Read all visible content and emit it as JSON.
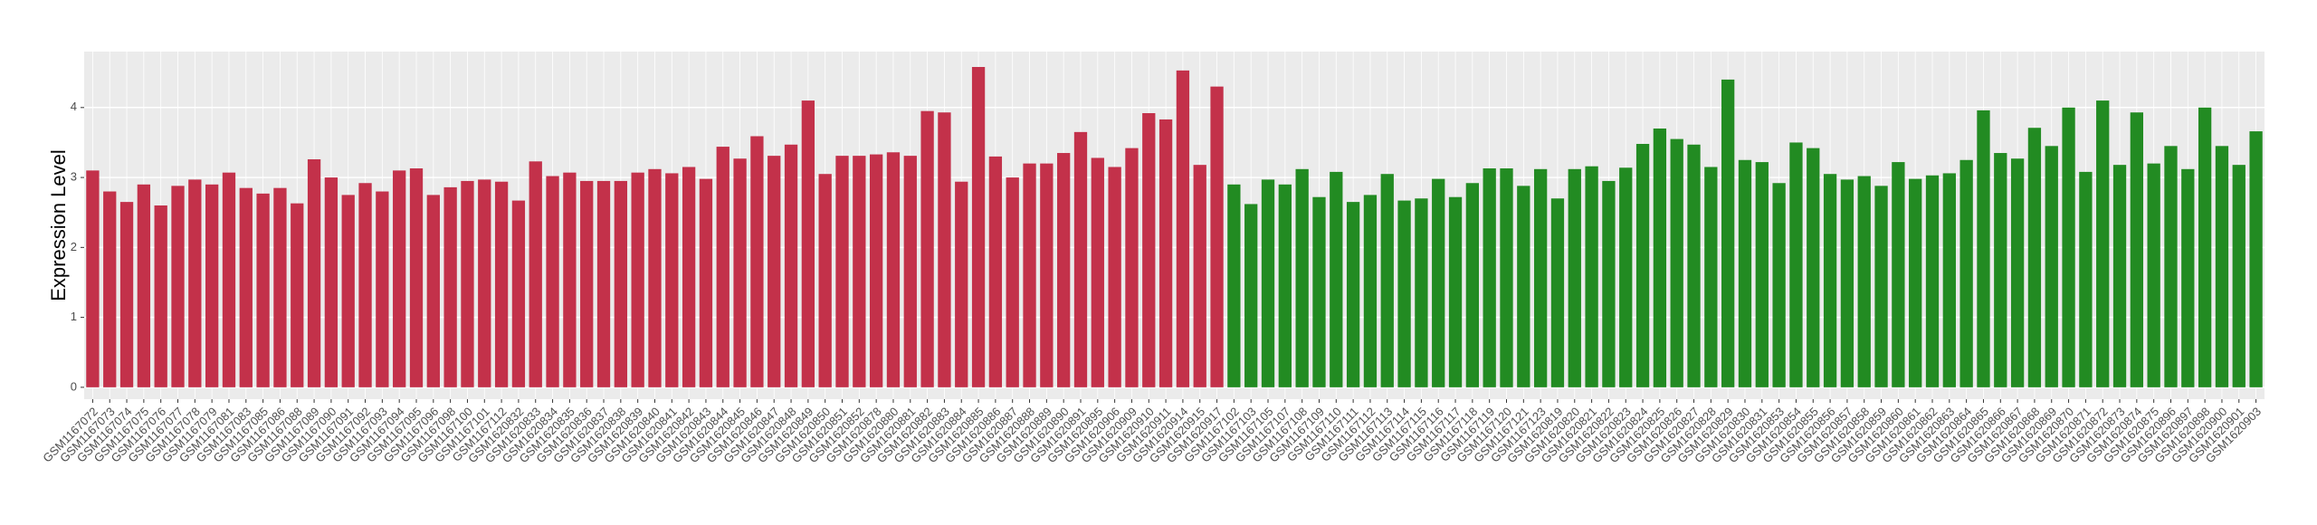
{
  "chart_data": {
    "type": "bar",
    "y_label": "Expression Level",
    "categories": [
      "GSM1167072",
      "GSM1167073",
      "GSM1167074",
      "GSM1167075",
      "GSM1167076",
      "GSM1167077",
      "GSM1167078",
      "GSM1167079",
      "GSM1167081",
      "GSM1167083",
      "GSM1167085",
      "GSM1167086",
      "GSM1167088",
      "GSM1167089",
      "GSM1167090",
      "GSM1167091",
      "GSM1167092",
      "GSM1167093",
      "GSM1167094",
      "GSM1167095",
      "GSM1167096",
      "GSM1167098",
      "GSM1167100",
      "GSM1167101",
      "GSM1167112",
      "GSM1620832",
      "GSM1620833",
      "GSM1620834",
      "GSM1620835",
      "GSM1620836",
      "GSM1620837",
      "GSM1620838",
      "GSM1620839",
      "GSM1620840",
      "GSM1620841",
      "GSM1620842",
      "GSM1620843",
      "GSM1620844",
      "GSM1620845",
      "GSM1620846",
      "GSM1620847",
      "GSM1620848",
      "GSM1620849",
      "GSM1620850",
      "GSM1620851",
      "GSM1620852",
      "GSM1620878",
      "GSM1620880",
      "GSM1620881",
      "GSM1620882",
      "GSM1620883",
      "GSM1620884",
      "GSM1620885",
      "GSM1620886",
      "GSM1620887",
      "GSM1620888",
      "GSM1620889",
      "GSM1620890",
      "GSM1620891",
      "GSM1620895",
      "GSM1620906",
      "GSM1620909",
      "GSM1620910",
      "GSM1620911",
      "GSM1620914",
      "GSM1620915",
      "GSM1620917",
      "GSM1167102",
      "GSM1167103",
      "GSM1167105",
      "GSM1167107",
      "GSM1167108",
      "GSM1167109",
      "GSM1167110",
      "GSM1167111",
      "GSM1167112",
      "GSM1167113",
      "GSM1167114",
      "GSM1167115",
      "GSM1167116",
      "GSM1167117",
      "GSM1167118",
      "GSM1167119",
      "GSM1167120",
      "GSM1167121",
      "GSM1167123",
      "GSM1620819",
      "GSM1620820",
      "GSM1620821",
      "GSM1620822",
      "GSM1620823",
      "GSM1620824",
      "GSM1620825",
      "GSM1620826",
      "GSM1620827",
      "GSM1620828",
      "GSM1620829",
      "GSM1620830",
      "GSM1620831",
      "GSM1620853",
      "GSM1620854",
      "GSM1620855",
      "GSM1620856",
      "GSM1620857",
      "GSM1620858",
      "GSM1620859",
      "GSM1620860",
      "GSM1620861",
      "GSM1620862",
      "GSM1620863",
      "GSM1620864",
      "GSM1620865",
      "GSM1620866",
      "GSM1620867",
      "GSM1620868",
      "GSM1620869",
      "GSM1620870",
      "GSM1620871",
      "GSM1620872",
      "GSM1620873",
      "GSM1620874",
      "GSM1620875",
      "GSM1620896",
      "GSM1620897",
      "GSM1620898",
      "GSM1620900",
      "GSM1620901",
      "GSM1620903"
    ],
    "values": [
      3.1,
      2.8,
      2.65,
      2.9,
      2.6,
      2.88,
      2.97,
      2.9,
      3.07,
      2.85,
      2.77,
      2.85,
      2.63,
      3.26,
      3.0,
      2.75,
      2.92,
      2.8,
      3.1,
      3.13,
      2.75,
      2.86,
      2.95,
      2.97,
      2.94,
      2.67,
      3.23,
      3.02,
      3.07,
      2.95,
      2.95,
      2.95,
      3.07,
      3.12,
      3.06,
      3.15,
      2.98,
      3.44,
      3.27,
      3.59,
      3.31,
      3.47,
      4.1,
      3.05,
      3.31,
      3.31,
      3.33,
      3.36,
      3.31,
      3.95,
      3.93,
      2.94,
      4.58,
      3.3,
      3.0,
      3.2,
      3.2,
      3.35,
      3.65,
      3.28,
      3.15,
      3.42,
      3.92,
      3.83,
      4.53,
      3.18,
      4.3,
      2.9,
      2.62,
      2.97,
      2.9,
      3.12,
      2.72,
      3.08,
      2.65,
      2.75,
      3.05,
      2.67,
      2.7,
      2.98,
      2.72,
      2.92,
      3.13,
      3.13,
      2.88,
      3.12,
      2.7,
      3.12,
      3.16,
      2.95,
      3.14,
      3.48,
      3.7,
      3.55,
      3.47,
      3.15,
      4.4,
      3.25,
      3.22,
      2.92,
      3.5,
      3.42,
      3.05,
      2.97,
      3.02,
      2.88,
      3.22,
      2.98,
      3.03,
      3.06,
      3.25,
      3.96,
      3.35,
      3.27,
      3.71,
      3.45,
      4.0,
      3.08,
      4.1,
      3.18,
      3.93,
      3.2,
      3.45,
      3.12,
      4.0,
      3.45,
      3.18,
      3.66
    ],
    "colors": [
      "#c3314a",
      "#c3314a",
      "#c3314a",
      "#c3314a",
      "#c3314a",
      "#c3314a",
      "#c3314a",
      "#c3314a",
      "#c3314a",
      "#c3314a",
      "#c3314a",
      "#c3314a",
      "#c3314a",
      "#c3314a",
      "#c3314a",
      "#c3314a",
      "#c3314a",
      "#c3314a",
      "#c3314a",
      "#c3314a",
      "#c3314a",
      "#c3314a",
      "#c3314a",
      "#c3314a",
      "#c3314a",
      "#c3314a",
      "#c3314a",
      "#c3314a",
      "#c3314a",
      "#c3314a",
      "#c3314a",
      "#c3314a",
      "#c3314a",
      "#c3314a",
      "#c3314a",
      "#c3314a",
      "#c3314a",
      "#c3314a",
      "#c3314a",
      "#c3314a",
      "#c3314a",
      "#c3314a",
      "#c3314a",
      "#c3314a",
      "#c3314a",
      "#c3314a",
      "#c3314a",
      "#c3314a",
      "#c3314a",
      "#c3314a",
      "#c3314a",
      "#c3314a",
      "#c3314a",
      "#c3314a",
      "#c3314a",
      "#c3314a",
      "#c3314a",
      "#c3314a",
      "#c3314a",
      "#c3314a",
      "#c3314a",
      "#c3314a",
      "#c3314a",
      "#c3314a",
      "#c3314a",
      "#c3314a",
      "#c3314a",
      "#228b22",
      "#228b22",
      "#228b22",
      "#228b22",
      "#228b22",
      "#228b22",
      "#228b22",
      "#228b22",
      "#228b22",
      "#228b22",
      "#228b22",
      "#228b22",
      "#228b22",
      "#228b22",
      "#228b22",
      "#228b22",
      "#228b22",
      "#228b22",
      "#228b22",
      "#228b22",
      "#228b22",
      "#228b22",
      "#228b22",
      "#228b22",
      "#228b22",
      "#228b22",
      "#228b22",
      "#228b22",
      "#228b22",
      "#228b22",
      "#228b22",
      "#228b22",
      "#228b22",
      "#228b22",
      "#228b22",
      "#228b22",
      "#228b22",
      "#228b22",
      "#228b22",
      "#228b22",
      "#228b22",
      "#228b22",
      "#228b22",
      "#228b22",
      "#228b22",
      "#228b22",
      "#228b22",
      "#228b22",
      "#228b22",
      "#228b22",
      "#228b22",
      "#228b22",
      "#228b22",
      "#228b22",
      "#228b22",
      "#228b22",
      "#228b22",
      "#228b22",
      "#228b22",
      "#228b22",
      "#228b22"
    ],
    "ylim": [
      -0.17,
      4.8
    ],
    "yticks": [
      0,
      1,
      2,
      3,
      4
    ],
    "grid": true
  }
}
